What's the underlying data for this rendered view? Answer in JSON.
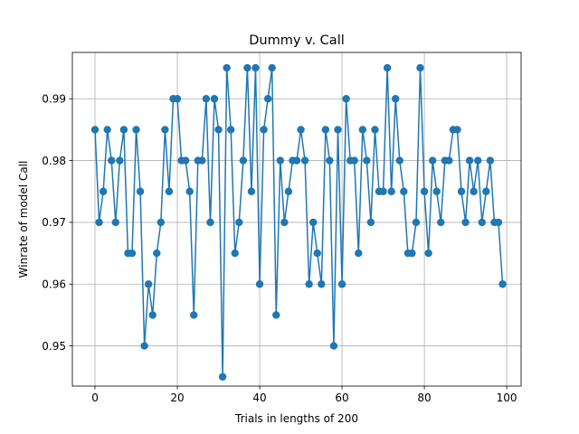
{
  "chart_data": {
    "type": "line",
    "title": "Dummy v. Call",
    "xlabel": "Trials in lengths of 200",
    "ylabel": "Winrate of model Call",
    "xlim": [
      -5.5,
      103.5
    ],
    "ylim": [
      0.9435,
      0.9975
    ],
    "xticks": [
      0,
      20,
      40,
      60,
      80,
      100
    ],
    "xtick_labels": [
      "0",
      "20",
      "40",
      "60",
      "80",
      "100"
    ],
    "yticks": [
      0.95,
      0.96,
      0.97,
      0.98,
      0.99
    ],
    "ytick_labels": [
      "0.95",
      "0.96",
      "0.97",
      "0.98",
      "0.99"
    ],
    "grid": true,
    "color": "#1f77b4",
    "marker": "circle",
    "series": [
      {
        "x": [
          0,
          1,
          2,
          3,
          4,
          5,
          6,
          7,
          8,
          9,
          10,
          11,
          12,
          13,
          14,
          15,
          16,
          17,
          18,
          19,
          20,
          21,
          22,
          23,
          24,
          25,
          26,
          27,
          28,
          29,
          30,
          31,
          32,
          33,
          34,
          35,
          36,
          37,
          38,
          39,
          40,
          41,
          42,
          43,
          44,
          45,
          46,
          47,
          48,
          49,
          50,
          51,
          52,
          53,
          54,
          55,
          56,
          57,
          58,
          59,
          60,
          61,
          62,
          63,
          64,
          65,
          66,
          67,
          68,
          69,
          70,
          71,
          72,
          73,
          74,
          75,
          76,
          77,
          78,
          79,
          80,
          81,
          82,
          83,
          84,
          85,
          86,
          87,
          88,
          89,
          90,
          91,
          92,
          93,
          94,
          95,
          96,
          97,
          98,
          99
        ],
        "y": [
          0.985,
          0.97,
          0.975,
          0.985,
          0.98,
          0.97,
          0.98,
          0.985,
          0.965,
          0.965,
          0.985,
          0.975,
          0.95,
          0.96,
          0.955,
          0.965,
          0.97,
          0.985,
          0.975,
          0.99,
          0.99,
          0.98,
          0.98,
          0.975,
          0.955,
          0.98,
          0.98,
          0.99,
          0.97,
          0.99,
          0.985,
          0.945,
          0.995,
          0.985,
          0.965,
          0.97,
          0.98,
          0.995,
          0.975,
          0.995,
          0.96,
          0.985,
          0.99,
          0.995,
          0.955,
          0.98,
          0.97,
          0.975,
          0.98,
          0.98,
          0.985,
          0.98,
          0.96,
          0.97,
          0.965,
          0.96,
          0.985,
          0.98,
          0.95,
          0.985,
          0.96,
          0.99,
          0.98,
          0.98,
          0.965,
          0.985,
          0.98,
          0.97,
          0.985,
          0.975,
          0.975,
          0.995,
          0.975,
          0.99,
          0.98,
          0.975,
          0.965,
          0.965,
          0.97,
          0.995,
          0.975,
          0.965,
          0.98,
          0.975,
          0.97,
          0.98,
          0.98,
          0.985,
          0.985,
          0.975,
          0.97,
          0.98,
          0.975,
          0.98,
          0.97,
          0.975,
          0.98,
          0.97,
          0.97,
          0.96
        ]
      }
    ]
  }
}
